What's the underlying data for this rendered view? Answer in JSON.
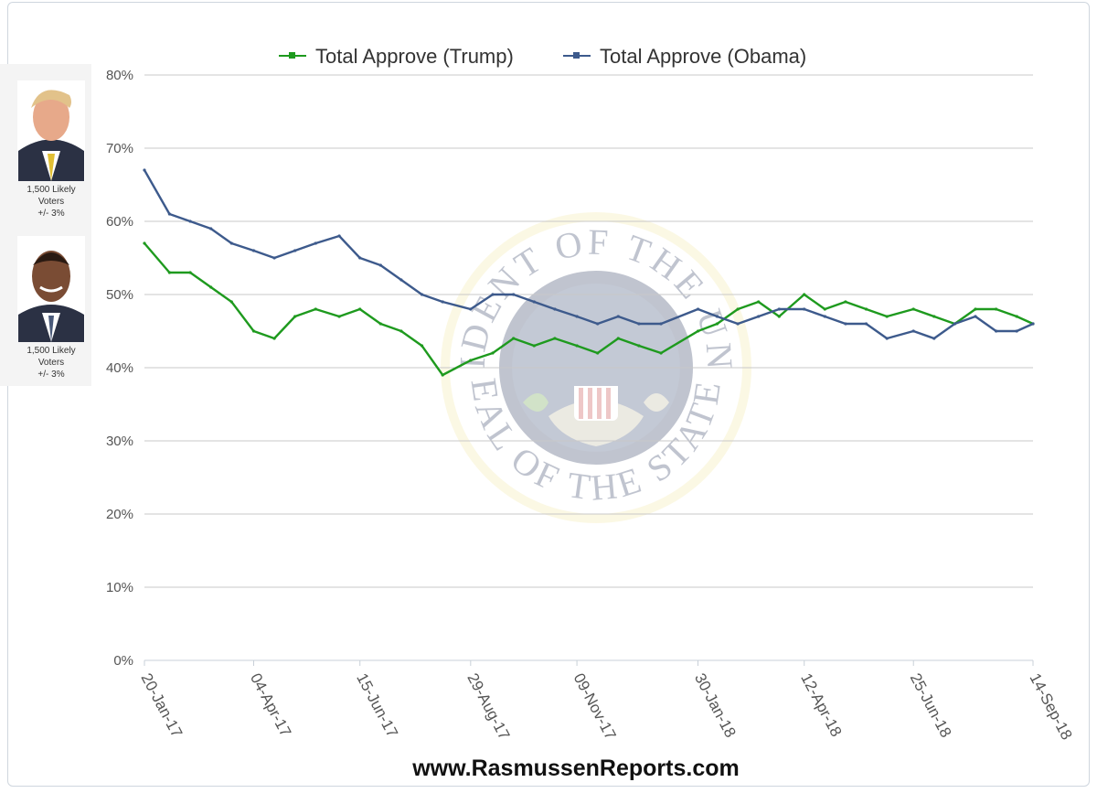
{
  "chart_data": {
    "type": "line",
    "title": "",
    "xlabel": "",
    "ylabel": "",
    "ylim": [
      0,
      80
    ],
    "y_ticks": [
      "0%",
      "10%",
      "20%",
      "30%",
      "40%",
      "50%",
      "60%",
      "70%",
      "80%"
    ],
    "x_ticks": [
      "20-Jan-17",
      "04-Apr-17",
      "15-Jun-17",
      "29-Aug-17",
      "09-Nov-17",
      "30-Jan-18",
      "12-Apr-18",
      "25-Jun-18",
      "14-Sep-18"
    ],
    "grid": true,
    "legend_position": "top",
    "x": [
      "20-Jan-17",
      "06-Feb-17",
      "20-Feb-17",
      "06-Mar-17",
      "20-Mar-17",
      "04-Apr-17",
      "18-Apr-17",
      "02-May-17",
      "16-May-17",
      "01-Jun-17",
      "15-Jun-17",
      "29-Jun-17",
      "13-Jul-17",
      "27-Jul-17",
      "10-Aug-17",
      "29-Aug-17",
      "13-Sep-17",
      "27-Sep-17",
      "11-Oct-17",
      "25-Oct-17",
      "09-Nov-17",
      "23-Nov-17",
      "07-Dec-17",
      "21-Dec-17",
      "05-Jan-18",
      "30-Jan-18",
      "12-Feb-18",
      "26-Feb-18",
      "12-Mar-18",
      "26-Mar-18",
      "12-Apr-18",
      "26-Apr-18",
      "10-May-18",
      "24-May-18",
      "07-Jun-18",
      "25-Jun-18",
      "09-Jul-18",
      "23-Jul-18",
      "06-Aug-18",
      "20-Aug-18",
      "03-Sep-18",
      "14-Sep-18"
    ],
    "series": [
      {
        "name": "Total Approve (Trump)",
        "color": "#1e9a1e",
        "values": [
          57,
          53,
          53,
          51,
          49,
          45,
          44,
          47,
          48,
          47,
          48,
          46,
          45,
          43,
          39,
          41,
          42,
          44,
          43,
          44,
          43,
          42,
          44,
          43,
          42,
          45,
          46,
          48,
          49,
          47,
          50,
          48,
          49,
          48,
          47,
          48,
          47,
          46,
          48,
          48,
          47,
          46
        ]
      },
      {
        "name": "Total Approve (Obama)",
        "color": "#3d5a8c",
        "values": [
          67,
          61,
          60,
          59,
          57,
          56,
          55,
          56,
          57,
          58,
          55,
          54,
          52,
          50,
          49,
          48,
          50,
          50,
          49,
          48,
          47,
          46,
          47,
          46,
          46,
          48,
          47,
          46,
          47,
          48,
          48,
          47,
          46,
          46,
          44,
          45,
          44,
          46,
          47,
          45,
          45,
          46
        ]
      }
    ]
  },
  "legend": {
    "trump_label": "Total Approve (Trump)",
    "obama_label": "Total Approve (Obama)"
  },
  "side_panel": {
    "trump_caption_1": "1,500 Likely",
    "trump_caption_2": "Voters",
    "trump_caption_3": "+/- 3%",
    "obama_caption_1": "1,500 Likely",
    "obama_caption_2": "Voters",
    "obama_caption_3": "+/- 3%"
  },
  "seal": {
    "top_text": "PRESIDENT OF THE UNITED",
    "bottom_text": "SEAL OF THE STATES"
  },
  "footer": {
    "site": "www.RasmussenReports.com"
  }
}
